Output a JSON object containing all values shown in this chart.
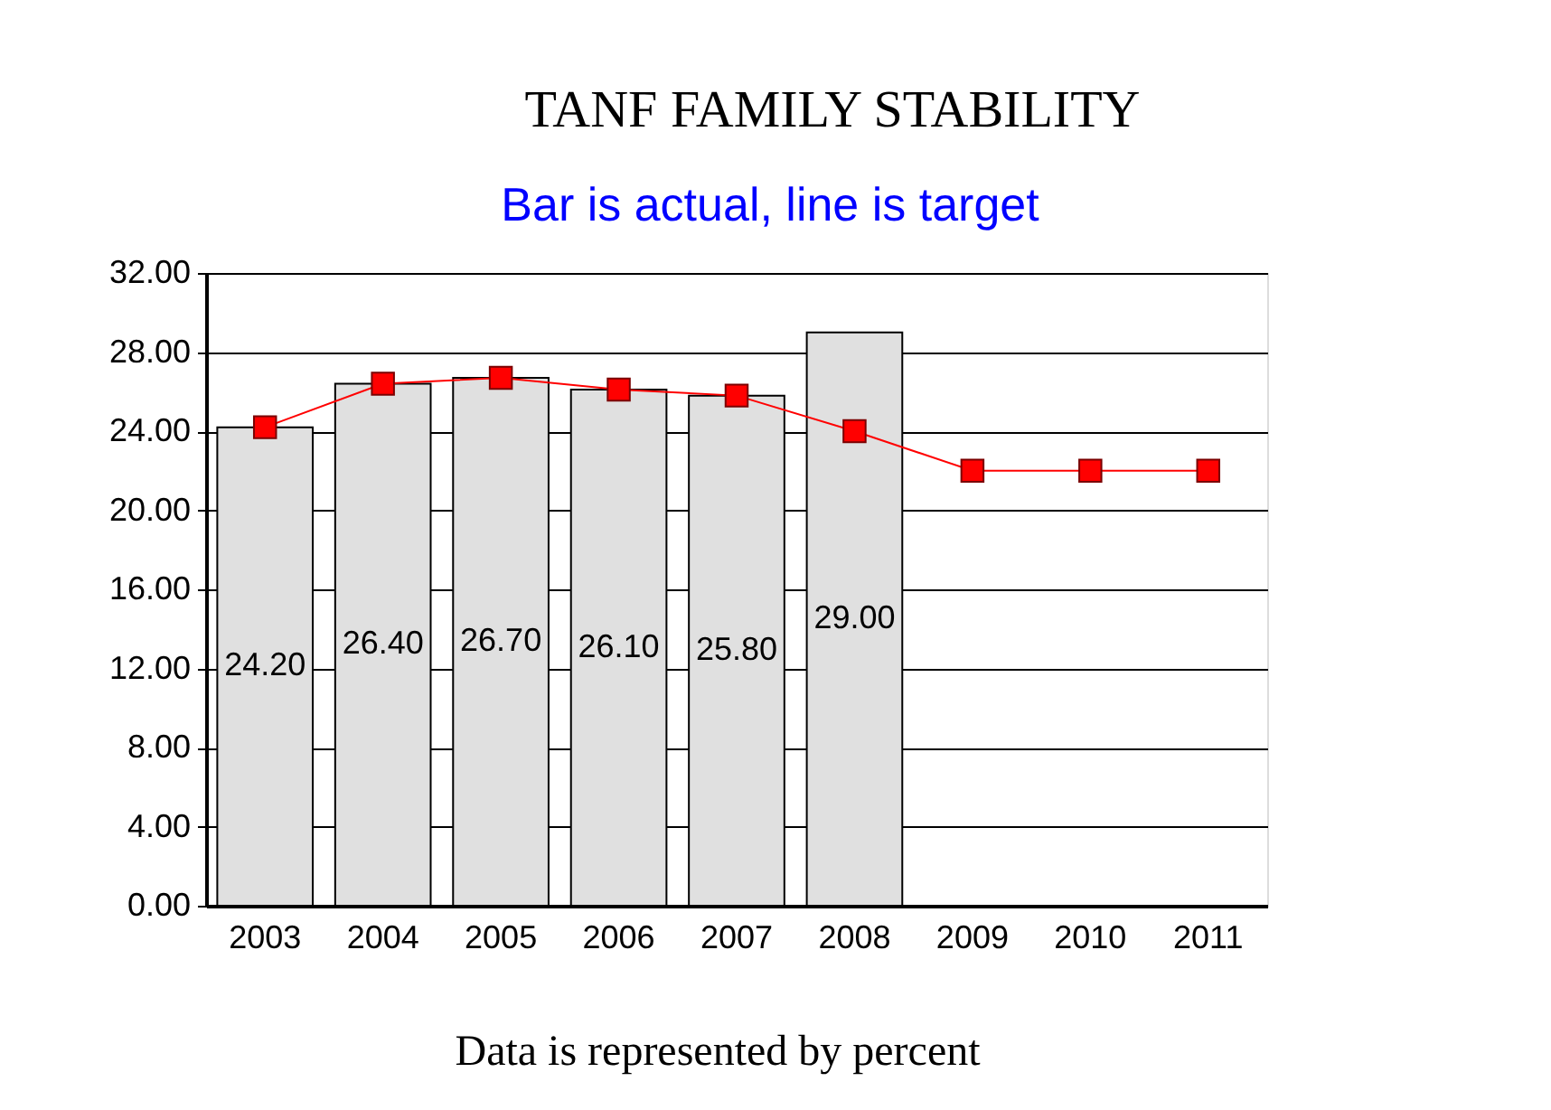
{
  "chart_data": {
    "type": "bar",
    "title": "TANF FAMILY STABILITY",
    "subtitle": "Bar is actual, line is target",
    "annotations": [
      "Data is represented by percent"
    ],
    "categories": [
      "2003",
      "2004",
      "2005",
      "2006",
      "2007",
      "2008",
      "2009",
      "2010",
      "2011"
    ],
    "series": [
      {
        "color": "#e0e0e0",
        "values": [
          24.2,
          26.4,
          26.7,
          26.1,
          25.8,
          29.0,
          null,
          null,
          null
        ],
        "value_labels": [
          "24.20",
          "26.40",
          "26.70",
          "26.10",
          "25.80",
          "29.00",
          null,
          null,
          null
        ]
      },
      {
        "type": "line",
        "color": "#ff0000",
        "values": [
          24.2,
          26.4,
          26.7,
          26.1,
          25.8,
          24,
          22,
          22,
          22
        ]
      }
    ],
    "ylim": [
      0,
      32
    ],
    "yticks": [
      {
        "value": 0,
        "label": "0.00"
      },
      {
        "value": 4,
        "label": "4.00"
      },
      {
        "value": 8,
        "label": "8.00"
      },
      {
        "value": 12,
        "label": "12.00"
      },
      {
        "value": 16,
        "label": "16.00"
      },
      {
        "value": 20,
        "label": "20.00"
      },
      {
        "value": 24,
        "label": "24.00"
      },
      {
        "value": 28,
        "label": "28.00"
      },
      {
        "value": 32,
        "label": "32.00"
      }
    ],
    "grid": "y",
    "marker": "square"
  }
}
